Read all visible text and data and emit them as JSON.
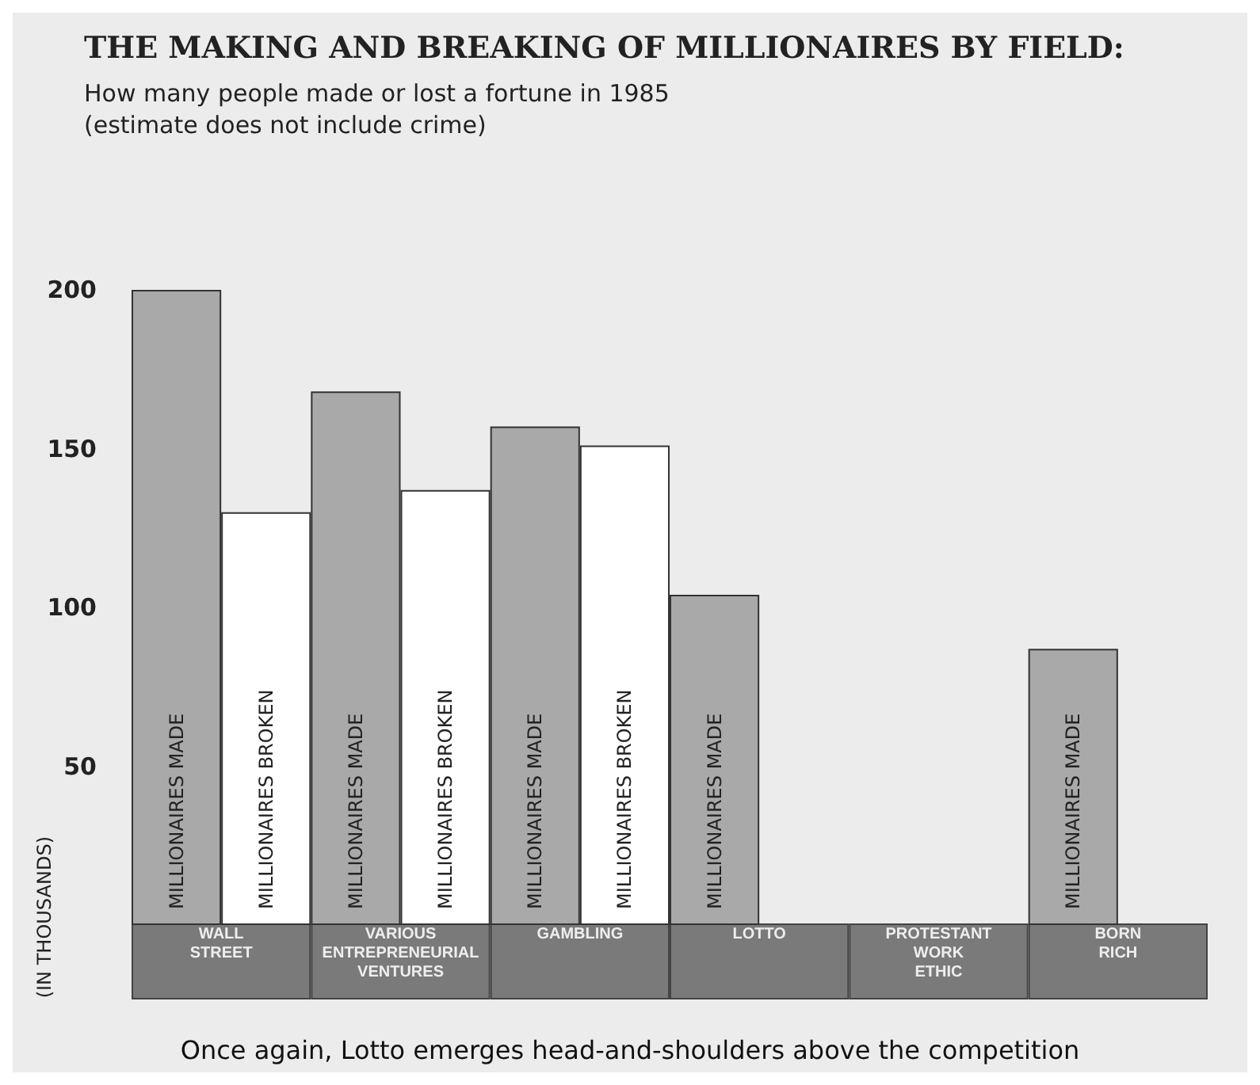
{
  "chart_data": {
    "type": "bar",
    "title": "THE MAKING AND BREAKING OF MILLIONAIRES BY FIELD:",
    "subtitle": "How many people made or lost a fortune in 1985\n(estimate does not include crime)",
    "ylabel": "(IN THOUSANDS)",
    "categories": [
      "WALL\nSTREET",
      "VARIOUS\nENTREPRENEURIAL\nVENTURES",
      "GAMBLING",
      "LOTTO",
      "PROTESTANT\nWORK\nETHIC",
      "BORN\nRICH"
    ],
    "series": [
      {
        "name": "MILLIONAIRES MADE",
        "color": "#a9a9a9",
        "values": [
          200,
          168,
          157,
          104,
          null,
          87
        ]
      },
      {
        "name": "MILLIONAIRES BROKEN",
        "color": "#ffffff",
        "values": [
          130,
          137,
          151,
          null,
          null,
          null
        ]
      }
    ],
    "ylim": [
      0,
      200
    ],
    "yticks": [
      50,
      100,
      150,
      200
    ],
    "grid": false,
    "legend": false,
    "annotations": [
      "Once again, Lotto emerges head-and-shoulders above the competition"
    ]
  }
}
